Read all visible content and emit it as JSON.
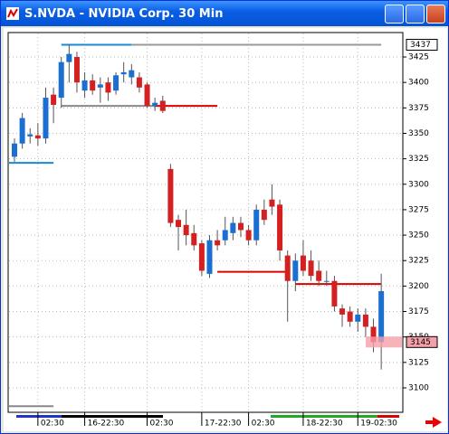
{
  "title": "S.NVDA - NVIDIA Corp. 30 Min",
  "chart_data": {
    "type": "candlestick",
    "ylim": [
      3076,
      3449
    ],
    "yticks": [
      3100,
      3125,
      3150,
      3175,
      3200,
      3225,
      3250,
      3275,
      3300,
      3325,
      3350,
      3375,
      3400,
      3425
    ],
    "xticks": [
      {
        "value": 3,
        "label": "02:30"
      },
      {
        "value": 9,
        "label": "16-22:30"
      },
      {
        "value": 17,
        "label": "02:30"
      },
      {
        "value": 24,
        "label": "17-22:30"
      },
      {
        "value": 30,
        "label": "02:30"
      },
      {
        "value": 37,
        "label": "18-22:30"
      },
      {
        "value": 44,
        "label": "19-02:30"
      }
    ],
    "up_color": "#1a6fd0",
    "down_color": "#d42020",
    "open": [
      3327,
      3340,
      3347,
      3348,
      3345,
      3388,
      3385,
      3420,
      3425,
      3392,
      3402,
      3395,
      3400,
      3392,
      3408,
      3405,
      3405,
      3398,
      3377,
      3382,
      3315,
      3265,
      3260,
      3252,
      3242,
      3212,
      3245,
      3245,
      3252,
      3262,
      3255,
      3245,
      3275,
      3285,
      3280,
      3230,
      3205,
      3230,
      3225,
      3215,
      3205,
      3205,
      3178,
      3175,
      3165,
      3172,
      3160,
      3145
    ],
    "high": [
      3345,
      3370,
      3355,
      3360,
      3395,
      3395,
      3425,
      3437,
      3430,
      3410,
      3408,
      3405,
      3405,
      3410,
      3420,
      3418,
      3410,
      3400,
      3385,
      3387,
      3320,
      3270,
      3275,
      3260,
      3245,
      3250,
      3255,
      3268,
      3268,
      3268,
      3260,
      3280,
      3285,
      3300,
      3285,
      3235,
      3232,
      3245,
      3235,
      3225,
      3215,
      3210,
      3182,
      3180,
      3178,
      3178,
      3168,
      3212
    ],
    "low": [
      3322,
      3335,
      3340,
      3338,
      3340,
      3360,
      3375,
      3400,
      3390,
      3385,
      3388,
      3380,
      3382,
      3388,
      3400,
      3398,
      3390,
      3375,
      3372,
      3370,
      3258,
      3235,
      3240,
      3235,
      3210,
      3208,
      3235,
      3240,
      3245,
      3248,
      3240,
      3240,
      3260,
      3270,
      3225,
      3165,
      3195,
      3210,
      3205,
      3200,
      3200,
      3175,
      3160,
      3160,
      3155,
      3150,
      3135,
      3118
    ],
    "close": [
      3340,
      3365,
      3349,
      3345,
      3385,
      3378,
      3420,
      3428,
      3400,
      3402,
      3392,
      3398,
      3390,
      3407,
      3410,
      3412,
      3395,
      3377,
      3380,
      3372,
      3262,
      3258,
      3250,
      3240,
      3215,
      3245,
      3240,
      3255,
      3262,
      3255,
      3245,
      3275,
      3265,
      3278,
      3235,
      3205,
      3225,
      3215,
      3210,
      3205,
      3205,
      3180,
      3172,
      3165,
      3172,
      3160,
      3145,
      3195
    ],
    "levels": [
      {
        "from": -1,
        "to": 5,
        "value": 3321,
        "color": "#1a8ad8"
      },
      {
        "from": -1,
        "to": 5,
        "value": 3082,
        "color": "#888888"
      },
      {
        "from": 6,
        "to": 18,
        "value": 3377,
        "color": "#888888"
      },
      {
        "from": 18,
        "to": 26,
        "value": 3377,
        "color": "#dd0000"
      },
      {
        "from": 26,
        "to": 35,
        "value": 3214,
        "color": "#dd0000"
      },
      {
        "from": 36,
        "to": 47,
        "value": 3202,
        "color": "#dd0000"
      },
      {
        "from": 6,
        "to": 15,
        "value": 3437,
        "color": "#1a8ad8"
      },
      {
        "from": 15,
        "to": 47,
        "value": 3437,
        "color": "#999999"
      }
    ],
    "price_labels": [
      {
        "value": 3437,
        "color": "#ffffff"
      },
      {
        "value": 3145,
        "color": "#f4a0a8"
      }
    ]
  }
}
